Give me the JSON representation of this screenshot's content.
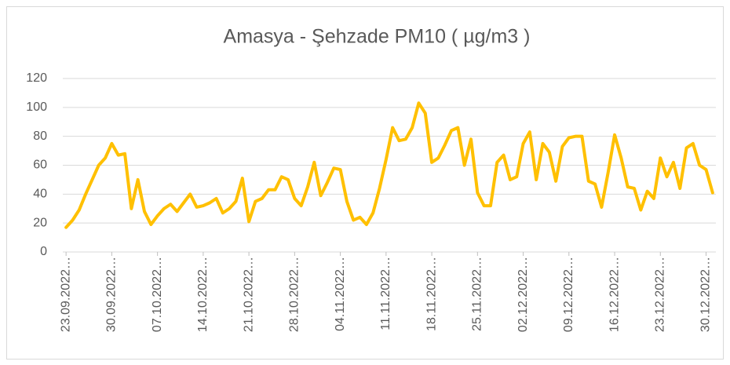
{
  "chart_data": {
    "type": "line",
    "title": "Amasya - Şehzade PM10 ( µg/m3 )",
    "categories": [
      "23.09.2022…",
      null,
      null,
      null,
      null,
      null,
      null,
      "30.09.2022…",
      null,
      null,
      null,
      null,
      null,
      null,
      "07.10.2022…",
      null,
      null,
      null,
      null,
      null,
      null,
      "14.10.2022…",
      null,
      null,
      null,
      null,
      null,
      null,
      "21.10.2022…",
      null,
      null,
      null,
      null,
      null,
      null,
      "28.10.2022…",
      null,
      null,
      null,
      null,
      null,
      null,
      "04.11.2022…",
      null,
      null,
      null,
      null,
      null,
      null,
      "11.11.2022…",
      null,
      null,
      null,
      null,
      null,
      null,
      "18.11.2022…",
      null,
      null,
      null,
      null,
      null,
      null,
      "25.11.2022…",
      null,
      null,
      null,
      null,
      null,
      null,
      "02.12.2022…",
      null,
      null,
      null,
      null,
      null,
      null,
      "09.12.2022…",
      null,
      null,
      null,
      null,
      null,
      null,
      "16.12.2022…",
      null,
      null,
      null,
      null,
      null,
      null,
      "23.12.2022…",
      null,
      null,
      null,
      null,
      null,
      null,
      "30.12.2022…",
      null
    ],
    "values": [
      17,
      22,
      29,
      40,
      50,
      60,
      65,
      75,
      67,
      68,
      30,
      50,
      28,
      19,
      25,
      30,
      33,
      28,
      34,
      40,
      31,
      32,
      34,
      37,
      27,
      30,
      35,
      51,
      21,
      35,
      37,
      43,
      43,
      52,
      50,
      37,
      32,
      45,
      62,
      39,
      48,
      58,
      57,
      35,
      22,
      24,
      19,
      27,
      44,
      64,
      86,
      77,
      78,
      86,
      103,
      96,
      62,
      65,
      74,
      84,
      86,
      60,
      78,
      41,
      32,
      32,
      62,
      67,
      50,
      52,
      75,
      83,
      50,
      75,
      69,
      49,
      73,
      79,
      80,
      80,
      49,
      47,
      31,
      55,
      81,
      65,
      45,
      44,
      29,
      42,
      37,
      65,
      52,
      62,
      44,
      72,
      75,
      60,
      57,
      41
    ],
    "color": "#ffc000",
    "ylim": [
      0,
      120
    ],
    "yticks": [
      0,
      20,
      40,
      60,
      80,
      100,
      120
    ],
    "grid": true
  }
}
